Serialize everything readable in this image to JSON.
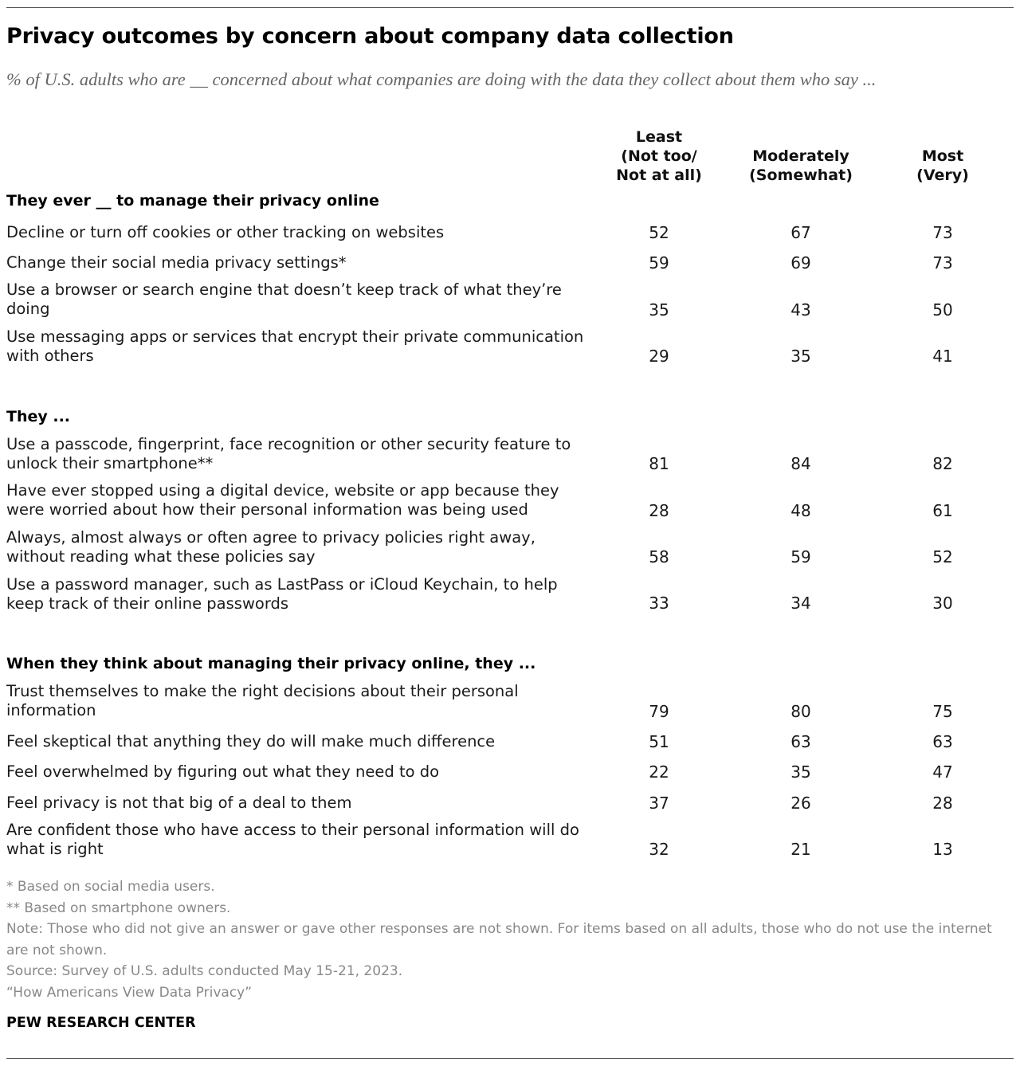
{
  "title": "Privacy outcomes by concern about company data collection",
  "subtitle": "% of U.S. adults who are __ concerned about what companies are doing with the data they collect about them who say ...",
  "chart_data": {
    "type": "table",
    "columns": [
      {
        "line1": "Least",
        "line2": "(Not too/",
        "line3": "Not at all)"
      },
      {
        "line1": "",
        "line2": "Moderately",
        "line3": "(Somewhat)"
      },
      {
        "line1": "",
        "line2": "Most",
        "line3": "(Very)"
      }
    ],
    "sections": [
      {
        "heading": "They ever __ to manage their privacy online",
        "rows": [
          {
            "label": "Decline or turn off cookies or other tracking on websites",
            "values": [
              52,
              67,
              73
            ]
          },
          {
            "label": "Change their social media privacy settings*",
            "values": [
              59,
              69,
              73
            ]
          },
          {
            "label": "Use a browser or search engine that doesn’t keep track of what they’re doing",
            "values": [
              35,
              43,
              50
            ]
          },
          {
            "label": "Use messaging apps or services that encrypt their private communication with others",
            "values": [
              29,
              35,
              41
            ]
          }
        ]
      },
      {
        "heading": "They ...",
        "rows": [
          {
            "label": "Use a passcode, fingerprint, face recognition or other security feature to unlock their smartphone**",
            "values": [
              81,
              84,
              82
            ]
          },
          {
            "label": "Have ever stopped using a digital device, website or app because they were worried about how their personal information was being used",
            "values": [
              28,
              48,
              61
            ]
          },
          {
            "label": "Always, almost always or often agree to privacy policies right away, without reading what these policies say",
            "values": [
              58,
              59,
              52
            ]
          },
          {
            "label": "Use a password manager, such as LastPass or iCloud Keychain, to help keep track of their online passwords",
            "values": [
              33,
              34,
              30
            ]
          }
        ]
      },
      {
        "heading": "When they think about managing their privacy online, they ...",
        "rows": [
          {
            "label": "Trust themselves to make the right decisions about their personal information",
            "values": [
              79,
              80,
              75
            ]
          },
          {
            "label": "Feel skeptical that anything they do will make much difference",
            "values": [
              51,
              63,
              63
            ]
          },
          {
            "label": "Feel overwhelmed by figuring out what they need to do",
            "values": [
              22,
              35,
              47
            ]
          },
          {
            "label": "Feel privacy is not that big of a deal to them",
            "values": [
              37,
              26,
              28
            ]
          },
          {
            "label": "Are confident those who have access to their personal information will do what is right",
            "values": [
              32,
              21,
              13
            ]
          }
        ]
      }
    ]
  },
  "footnotes": {
    "social": "* Based on social media users.",
    "smartphone": "** Based on smartphone owners.",
    "note": "Note: Those who did not give an answer or gave other responses are not shown. For items based on all adults, those who do not use the internet are not shown.",
    "source": "Source: Survey of U.S. adults conducted May 15-21, 2023.",
    "report": "“How Americans View Data Privacy”"
  },
  "brand": "PEW RESEARCH CENTER"
}
